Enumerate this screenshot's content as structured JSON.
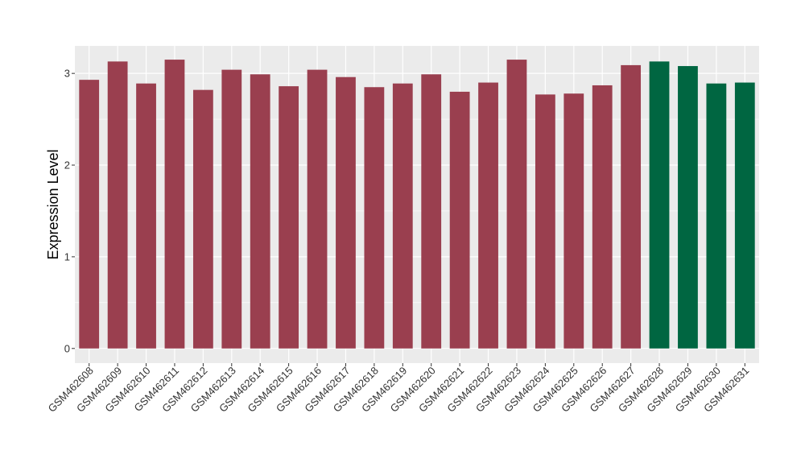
{
  "chart_data": {
    "type": "bar",
    "title": "",
    "xlabel": "",
    "ylabel": "Expression Level",
    "ylim": [
      -0.16,
      3.3
    ],
    "yticks": [
      0,
      1,
      2,
      3
    ],
    "grid": true,
    "colors": {
      "group_a": "#9a3f4f",
      "group_b": "#006641",
      "panel": "#ebebeb",
      "grid": "#ffffff"
    },
    "categories": [
      "GSM462608",
      "GSM462609",
      "GSM462610",
      "GSM462611",
      "GSM462612",
      "GSM462613",
      "GSM462614",
      "GSM462615",
      "GSM462616",
      "GSM462617",
      "GSM462618",
      "GSM462619",
      "GSM462620",
      "GSM462621",
      "GSM462622",
      "GSM462623",
      "GSM462624",
      "GSM462625",
      "GSM462626",
      "GSM462627",
      "GSM462628",
      "GSM462629",
      "GSM462630",
      "GSM462631"
    ],
    "values": [
      2.93,
      3.13,
      2.89,
      3.15,
      2.82,
      3.04,
      2.99,
      2.86,
      3.04,
      2.96,
      2.85,
      2.89,
      2.99,
      2.8,
      2.9,
      3.15,
      2.77,
      2.78,
      2.87,
      3.09,
      3.13,
      3.08,
      2.89,
      2.9
    ],
    "groups": [
      "a",
      "a",
      "a",
      "a",
      "a",
      "a",
      "a",
      "a",
      "a",
      "a",
      "a",
      "a",
      "a",
      "a",
      "a",
      "a",
      "a",
      "a",
      "a",
      "a",
      "b",
      "b",
      "b",
      "b"
    ]
  }
}
